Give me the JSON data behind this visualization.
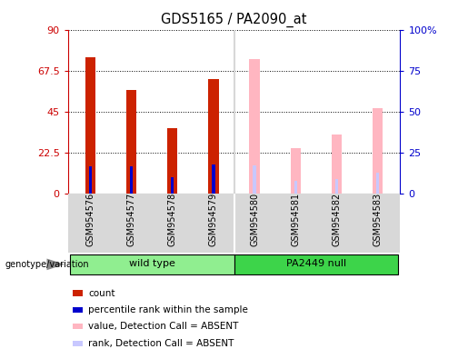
{
  "title": "GDS5165 / PA2090_at",
  "samples": [
    "GSM954576",
    "GSM954577",
    "GSM954578",
    "GSM954579",
    "GSM954580",
    "GSM954581",
    "GSM954582",
    "GSM954583"
  ],
  "groups": [
    {
      "label": "wild type",
      "color": "#90EE90",
      "indices": [
        0,
        1,
        2,
        3
      ]
    },
    {
      "label": "PA2449 null",
      "color": "#3DD44A",
      "indices": [
        4,
        5,
        6,
        7
      ]
    }
  ],
  "count": [
    75,
    57,
    36,
    63,
    null,
    null,
    null,
    null
  ],
  "percentile_rank": [
    15,
    15,
    9,
    16,
    null,
    null,
    null,
    null
  ],
  "absent_value": [
    null,
    null,
    null,
    null,
    82,
    28,
    36,
    52
  ],
  "absent_rank": [
    null,
    null,
    null,
    null,
    17,
    8,
    9,
    13
  ],
  "ylim_left": [
    0,
    90
  ],
  "ylim_right": [
    0,
    100
  ],
  "yticks_left": [
    0,
    22.5,
    45,
    67.5,
    90
  ],
  "yticks_right": [
    0,
    25,
    50,
    75,
    100
  ],
  "yticklabels_right": [
    "0",
    "25",
    "50",
    "75",
    "100%"
  ],
  "left_axis_color": "#CC0000",
  "right_axis_color": "#0000CC",
  "bg_color": "#D8D8D8",
  "plot_bg": "#FFFFFF",
  "legend_items": [
    {
      "label": "count",
      "color": "#CC2200"
    },
    {
      "label": "percentile rank within the sample",
      "color": "#0000CC"
    },
    {
      "label": "value, Detection Call = ABSENT",
      "color": "#FFB6C1"
    },
    {
      "label": "rank, Detection Call = ABSENT",
      "color": "#C8C8FF"
    }
  ],
  "genotype_label": "genotype/variation"
}
